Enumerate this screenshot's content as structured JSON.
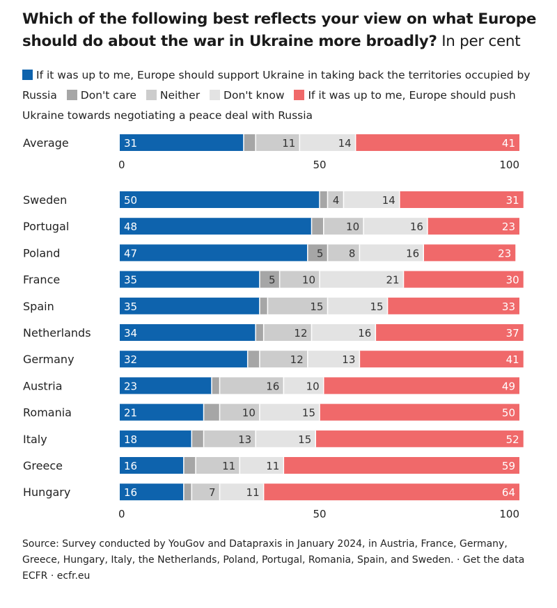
{
  "title": "Which of the following best reflects your view on what Europe should do about the war in Ukraine more broadly?",
  "unit": "In per cent",
  "legend": [
    {
      "label": "If it was up to me, Europe should support Ukraine in taking back the territories occupied by Russia",
      "color": "#0e63ad"
    },
    {
      "label": "Don't care",
      "color": "#a6a6a6"
    },
    {
      "label": "Neither",
      "color": "#cccccc"
    },
    {
      "label": "Don't know",
      "color": "#e3e3e3"
    },
    {
      "label": "If it was up to me, Europe should push Ukraine towards negotiating a peace deal with Russia",
      "color": "#f0696a"
    }
  ],
  "source": "Source: Survey conducted by YouGov and Datapraxis in January 2024, in Austria, France, Germany, Greece, Hungary, Italy, the Netherlands, Poland, Portugal, Romania, Spain, and Sweden. · Get the data",
  "credit": "ECFR · ecfr.eu",
  "chart_data": {
    "type": "bar",
    "stacked": true,
    "orientation": "horizontal",
    "xlim": [
      0,
      100
    ],
    "ticks": [
      0,
      50,
      100
    ],
    "series": [
      {
        "name": "If it was up to me, Europe should support Ukraine in taking back the territories occupied by Russia",
        "color": "#0e63ad",
        "label_color": "#ffffff"
      },
      {
        "name": "Don't care",
        "color": "#a6a6a6",
        "label_color": "#333333"
      },
      {
        "name": "Neither",
        "color": "#cccccc",
        "label_color": "#333333"
      },
      {
        "name": "Don't know",
        "color": "#e3e3e3",
        "label_color": "#333333"
      },
      {
        "name": "If it was up to me, Europe should push Ukraine towards negotiating a peace deal with Russia",
        "color": "#f0696a",
        "label_color": "#ffffff"
      }
    ],
    "groups": [
      {
        "rows": [
          {
            "category": "Average",
            "values": [
              31,
              3,
              11,
              14,
              41
            ],
            "labels": [
              "31",
              "",
              "11",
              "14",
              "41"
            ]
          }
        ]
      },
      {
        "rows": [
          {
            "category": "Sweden",
            "values": [
              50,
              2,
              4,
              14,
              31
            ],
            "labels": [
              "50",
              "",
              "4",
              "14",
              "31"
            ]
          },
          {
            "category": "Portugal",
            "values": [
              48,
              3,
              10,
              16,
              23
            ],
            "labels": [
              "48",
              "",
              "10",
              "16",
              "23"
            ]
          },
          {
            "category": "Poland",
            "values": [
              47,
              5,
              8,
              16,
              23
            ],
            "labels": [
              "47",
              "5",
              "8",
              "16",
              "23"
            ]
          },
          {
            "category": "France",
            "values": [
              35,
              5,
              10,
              21,
              30
            ],
            "labels": [
              "35",
              "5",
              "10",
              "21",
              "30"
            ]
          },
          {
            "category": "Spain",
            "values": [
              35,
              2,
              15,
              15,
              33
            ],
            "labels": [
              "35",
              "",
              "15",
              "15",
              "33"
            ]
          },
          {
            "category": "Netherlands",
            "values": [
              34,
              2,
              12,
              16,
              37
            ],
            "labels": [
              "34",
              "",
              "12",
              "16",
              "37"
            ]
          },
          {
            "category": "Germany",
            "values": [
              32,
              3,
              12,
              13,
              41
            ],
            "labels": [
              "32",
              "",
              "12",
              "13",
              "41"
            ]
          },
          {
            "category": "Austria",
            "values": [
              23,
              2,
              16,
              10,
              49
            ],
            "labels": [
              "23",
              "",
              "16",
              "10",
              "49"
            ]
          },
          {
            "category": "Romania",
            "values": [
              21,
              4,
              10,
              15,
              50
            ],
            "labels": [
              "21",
              "",
              "10",
              "15",
              "50"
            ]
          },
          {
            "category": "Italy",
            "values": [
              18,
              3,
              13,
              15,
              52
            ],
            "labels": [
              "18",
              "",
              "13",
              "15",
              "52"
            ]
          },
          {
            "category": "Greece",
            "values": [
              16,
              3,
              11,
              11,
              59
            ],
            "labels": [
              "16",
              "",
              "11",
              "11",
              "59"
            ]
          },
          {
            "category": "Hungary",
            "values": [
              16,
              2,
              7,
              11,
              64
            ],
            "labels": [
              "16",
              "",
              "7",
              "11",
              "64"
            ]
          }
        ]
      }
    ]
  }
}
